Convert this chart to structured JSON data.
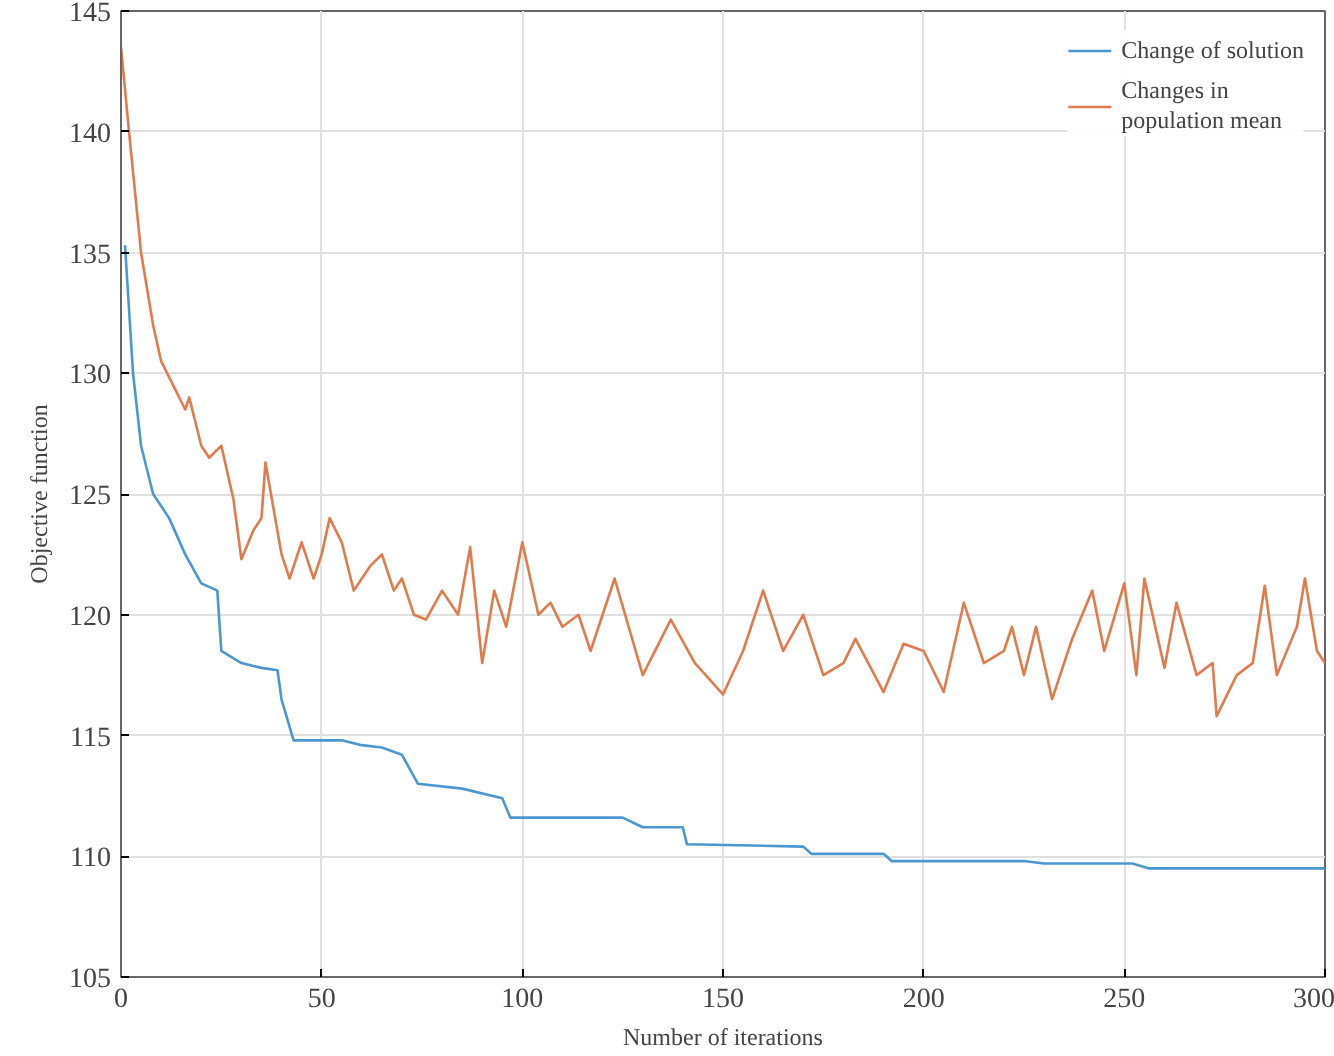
{
  "chart_data": {
    "type": "line",
    "xlabel": "Number of iterations",
    "ylabel": "Objective function",
    "xlim": [
      0,
      300
    ],
    "xticks": [
      0,
      50,
      100,
      150,
      200,
      250,
      300
    ],
    "ylim": [
      105,
      145
    ],
    "yticks": [
      105,
      110,
      115,
      120,
      125,
      130,
      135,
      140,
      145
    ],
    "grid": true,
    "legend": "top right",
    "marker": "none",
    "line_style": "solid",
    "series": [
      {
        "name": "Change of solution",
        "color": "#4d97d1",
        "x": [
          1,
          3,
          5,
          8,
          12,
          16,
          20,
          24,
          25,
          30,
          35,
          39,
          40,
          43,
          55,
          60,
          65,
          70,
          74,
          85,
          95,
          97,
          125,
          130,
          140,
          141,
          170,
          172,
          190,
          192,
          225,
          230,
          252,
          256,
          300
        ],
        "values": [
          135.3,
          130,
          127,
          125,
          124,
          122.5,
          121.3,
          121,
          118.5,
          118,
          117.8,
          117.7,
          116.5,
          114.8,
          114.8,
          114.6,
          114.5,
          114.2,
          113,
          112.8,
          112.4,
          111.6,
          111.6,
          111.2,
          111.2,
          110.5,
          110.4,
          110.1,
          110.1,
          109.8,
          109.8,
          109.7,
          109.7,
          109.5,
          109.5
        ]
      },
      {
        "name": "Changes in\npopulation mean",
        "color": "#e07a4f",
        "x": [
          0,
          2,
          5,
          8,
          10,
          13,
          16,
          17,
          20,
          22,
          25,
          28,
          30,
          33,
          35,
          36,
          40,
          42,
          45,
          48,
          50,
          52,
          55,
          58,
          62,
          65,
          68,
          70,
          73,
          76,
          80,
          84,
          87,
          90,
          93,
          96,
          100,
          104,
          107,
          110,
          114,
          117,
          120,
          123,
          130,
          137,
          143,
          150,
          155,
          160,
          165,
          170,
          175,
          180,
          183,
          190,
          195,
          200,
          205,
          210,
          215,
          220,
          222,
          225,
          228,
          232,
          237,
          242,
          245,
          250,
          253,
          255,
          260,
          263,
          268,
          272,
          273,
          278,
          282,
          285,
          288,
          293,
          295,
          298,
          300
        ],
        "values": [
          143.5,
          140,
          135,
          132,
          130.5,
          129.5,
          128.5,
          129,
          127,
          126.5,
          127,
          124.8,
          122.3,
          123.5,
          124,
          126.3,
          122.5,
          121.5,
          123,
          121.5,
          122.5,
          124,
          123,
          121,
          122,
          122.5,
          121,
          121.5,
          120,
          119.8,
          121,
          120,
          122.8,
          118,
          121,
          119.5,
          123,
          120,
          120.5,
          119.5,
          120,
          118.5,
          120,
          121.5,
          117.5,
          119.8,
          118,
          116.7,
          118.5,
          121,
          118.5,
          120,
          117.5,
          118,
          119,
          116.8,
          118.8,
          118.5,
          116.8,
          120.5,
          118,
          118.5,
          119.5,
          117.5,
          119.5,
          116.5,
          119,
          121,
          118.5,
          121.3,
          117.5,
          121.5,
          117.8,
          120.5,
          117.5,
          118,
          115.8,
          117.5,
          118,
          121.2,
          117.5,
          119.5,
          121.5,
          118.5,
          118
        ]
      }
    ]
  }
}
